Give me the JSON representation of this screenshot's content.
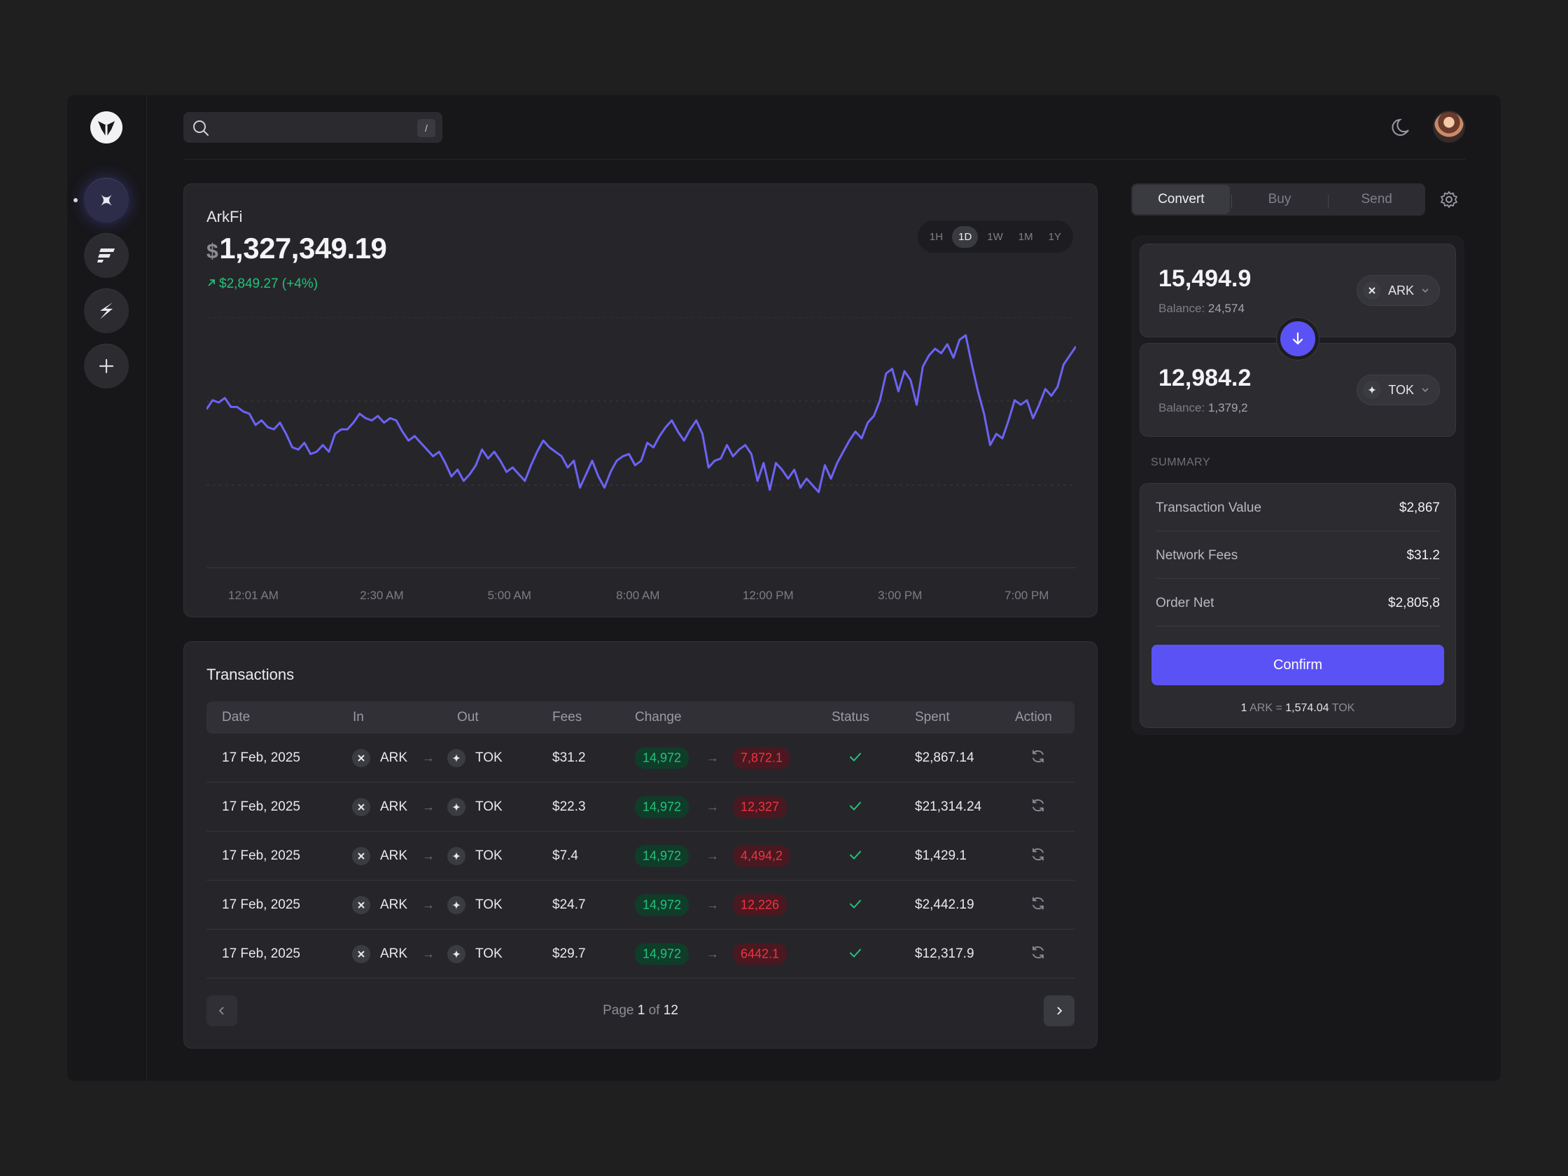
{
  "search": {
    "shortcut": "/"
  },
  "chart_card": {
    "asset": "ArkFi",
    "currency_symbol": "$",
    "price": "1,327,349.19",
    "change": "$2,849.27 (+4%)",
    "timeframes": [
      "1H",
      "1D",
      "1W",
      "1M",
      "1Y"
    ],
    "active_timeframe": "1D"
  },
  "chart_data": {
    "type": "line",
    "series_color": "#6c63f4",
    "x_tick_labels": [
      "12:01 AM",
      "2:30 AM",
      "5:00 AM",
      "8:00 AM",
      "12:00 PM",
      "3:00 PM",
      "7:00 PM"
    ],
    "ylim": [
      0,
      100
    ],
    "grid": "horizontal dashed",
    "values": [
      62,
      66,
      65,
      67,
      63,
      63,
      61,
      60,
      55,
      57,
      54,
      53,
      56,
      51,
      45,
      44,
      47,
      42,
      43,
      46,
      43,
      51,
      53,
      53,
      56,
      60,
      58,
      57,
      59,
      56,
      58,
      57,
      52,
      48,
      50,
      47,
      44,
      41,
      43,
      38,
      32,
      35,
      30,
      33,
      37,
      44,
      40,
      43,
      39,
      34,
      36,
      33,
      30,
      37,
      43,
      48,
      45,
      43,
      41,
      36,
      39,
      27,
      33,
      39,
      32,
      27,
      34,
      39,
      41,
      42,
      37,
      39,
      47,
      45,
      50,
      54,
      57,
      52,
      48,
      53,
      57,
      51,
      36,
      39,
      40,
      46,
      41,
      44,
      46,
      42,
      30,
      38,
      26,
      38,
      35,
      31,
      35,
      27,
      31,
      28,
      25,
      37,
      31,
      38,
      43,
      48,
      52,
      49,
      56,
      59,
      66,
      78,
      80,
      70,
      79,
      75,
      64,
      81,
      86,
      89,
      87,
      91,
      85,
      93,
      95,
      82,
      70,
      60,
      46,
      51,
      49,
      57,
      66,
      64,
      66,
      58,
      64,
      71,
      68,
      72,
      82,
      86,
      90
    ]
  },
  "transactions": {
    "title": "Transactions",
    "columns": [
      "Date",
      "In",
      "Out",
      "Fees",
      "Change",
      "Status",
      "Spent",
      "Action"
    ],
    "rows": [
      {
        "date": "17 Feb, 2025",
        "in": "ARK",
        "out": "TOK",
        "fees": "$31.2",
        "from": "14,972",
        "to": "7,872.1",
        "spent": "$2,867.14"
      },
      {
        "date": "17 Feb, 2025",
        "in": "ARK",
        "out": "TOK",
        "fees": "$22.3",
        "from": "14,972",
        "to": "12,327",
        "spent": "$21,314.24"
      },
      {
        "date": "17 Feb, 2025",
        "in": "ARK",
        "out": "TOK",
        "fees": "$7.4",
        "from": "14,972",
        "to": "4,494,2",
        "spent": "$1,429.1"
      },
      {
        "date": "17 Feb, 2025",
        "in": "ARK",
        "out": "TOK",
        "fees": "$24.7",
        "from": "14,972",
        "to": "12,226",
        "spent": "$2,442.19"
      },
      {
        "date": "17 Feb, 2025",
        "in": "ARK",
        "out": "TOK",
        "fees": "$29.7",
        "from": "14,972",
        "to": "6442.1",
        "spent": "$12,317.9"
      }
    ],
    "pager": {
      "prefix": "Page",
      "current": "1",
      "of": "of",
      "total": "12"
    }
  },
  "convert_panel": {
    "tabs": [
      "Convert",
      "Buy",
      "Send"
    ],
    "active_tab": "Convert",
    "from": {
      "amount": "15,494.9",
      "balance_label": "Balance:",
      "balance": "24,574",
      "token": "ARK"
    },
    "to": {
      "amount": "12,984.2",
      "balance_label": "Balance:",
      "balance": "1,379,2",
      "token": "TOK"
    },
    "summary_label": "SUMMARY",
    "summary": [
      {
        "label": "Transaction Value",
        "value": "$2,867"
      },
      {
        "label": "Network Fees",
        "value": "$31.2"
      },
      {
        "label": "Order Net",
        "value": "$2,805,8"
      }
    ],
    "confirm_label": "Confirm",
    "rate": {
      "left_amount": "1",
      "left_token": "ARK",
      "eq": "=",
      "right_amount": "1,574.04",
      "right_token": "TOK"
    }
  },
  "colors": {
    "accent": "#5b52f5",
    "positive": "#22c27a",
    "negative": "#f0343f"
  },
  "icons": [
    "logo-icon",
    "sparkle-icon",
    "stack-icon",
    "bolt-icon",
    "plus-icon",
    "search-icon",
    "moon-icon",
    "gear-icon",
    "arrow-down-icon",
    "chevron-down-icon",
    "refresh-icon",
    "check-icon",
    "chevron-left-icon",
    "chevron-right-icon"
  ]
}
